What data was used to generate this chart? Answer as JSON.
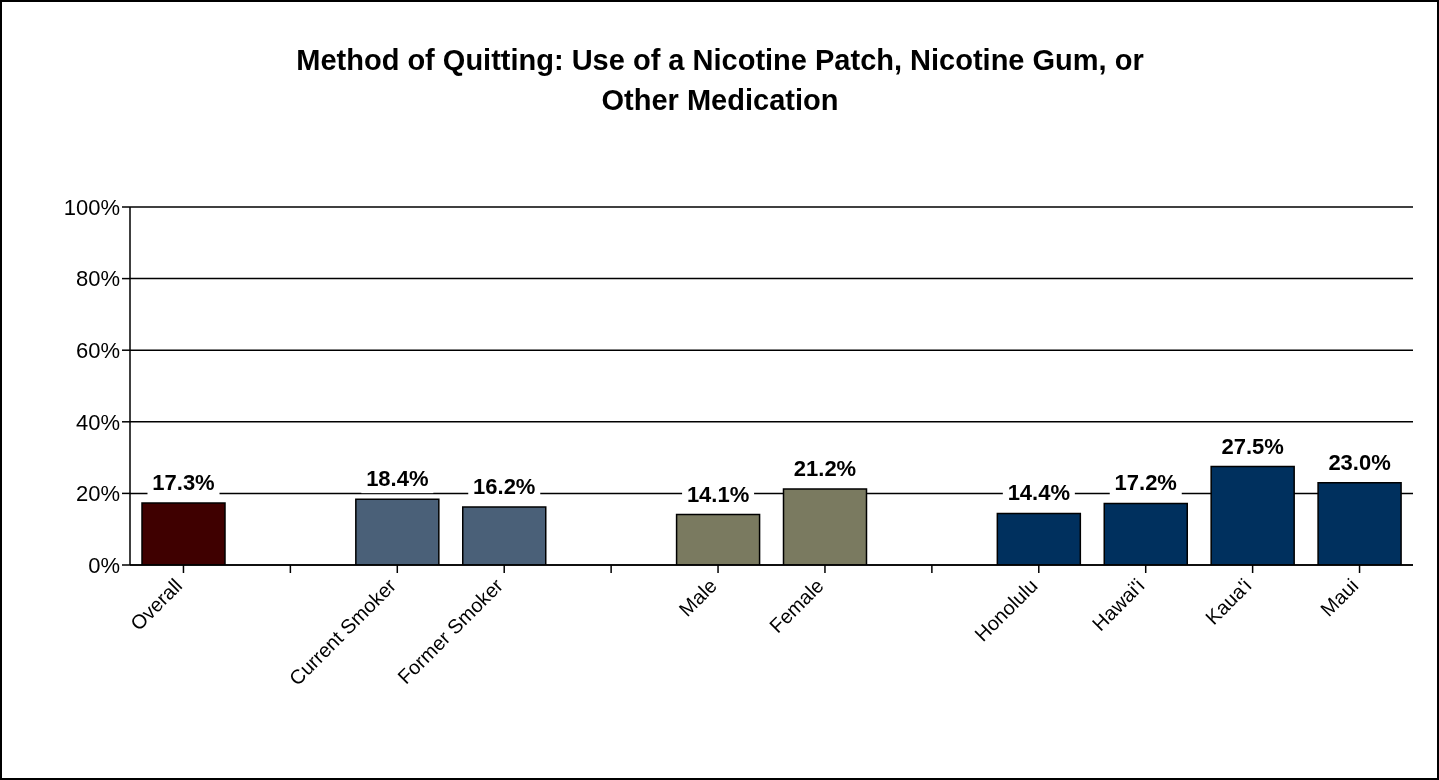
{
  "chart_data": {
    "type": "bar",
    "title": "Method of Quitting: Use of a Nicotine Patch, Nicotine Gum, or Other Medication",
    "categories": [
      "Overall",
      null,
      "Current Smoker",
      "Former Smoker",
      null,
      "Male",
      "Female",
      null,
      "Honolulu",
      "Hawai'i",
      "Kaua'i",
      "Maui"
    ],
    "values": [
      17.3,
      null,
      18.4,
      16.2,
      null,
      14.1,
      21.2,
      null,
      14.4,
      17.2,
      27.5,
      23.0
    ],
    "colors": [
      "#3f0000",
      null,
      "#4a6078",
      "#4a6078",
      null,
      "#7a7a60",
      "#7a7a60",
      null,
      "#00305e",
      "#00305e",
      "#00305e",
      "#00305e"
    ],
    "value_labels": [
      "17.3%",
      null,
      "18.4%",
      "16.2%",
      null,
      "14.1%",
      "21.2%",
      null,
      "14.4%",
      "17.2%",
      "27.5%",
      "23.0%"
    ],
    "ylim": [
      0,
      100
    ],
    "yticks": [
      {
        "value": 0,
        "label": "0%"
      },
      {
        "value": 20,
        "label": "20%"
      },
      {
        "value": 40,
        "label": "40%"
      },
      {
        "value": 60,
        "label": "60%"
      },
      {
        "value": 80,
        "label": "80%"
      },
      {
        "value": 100,
        "label": "100%"
      }
    ],
    "grid": "y",
    "legend": false
  }
}
